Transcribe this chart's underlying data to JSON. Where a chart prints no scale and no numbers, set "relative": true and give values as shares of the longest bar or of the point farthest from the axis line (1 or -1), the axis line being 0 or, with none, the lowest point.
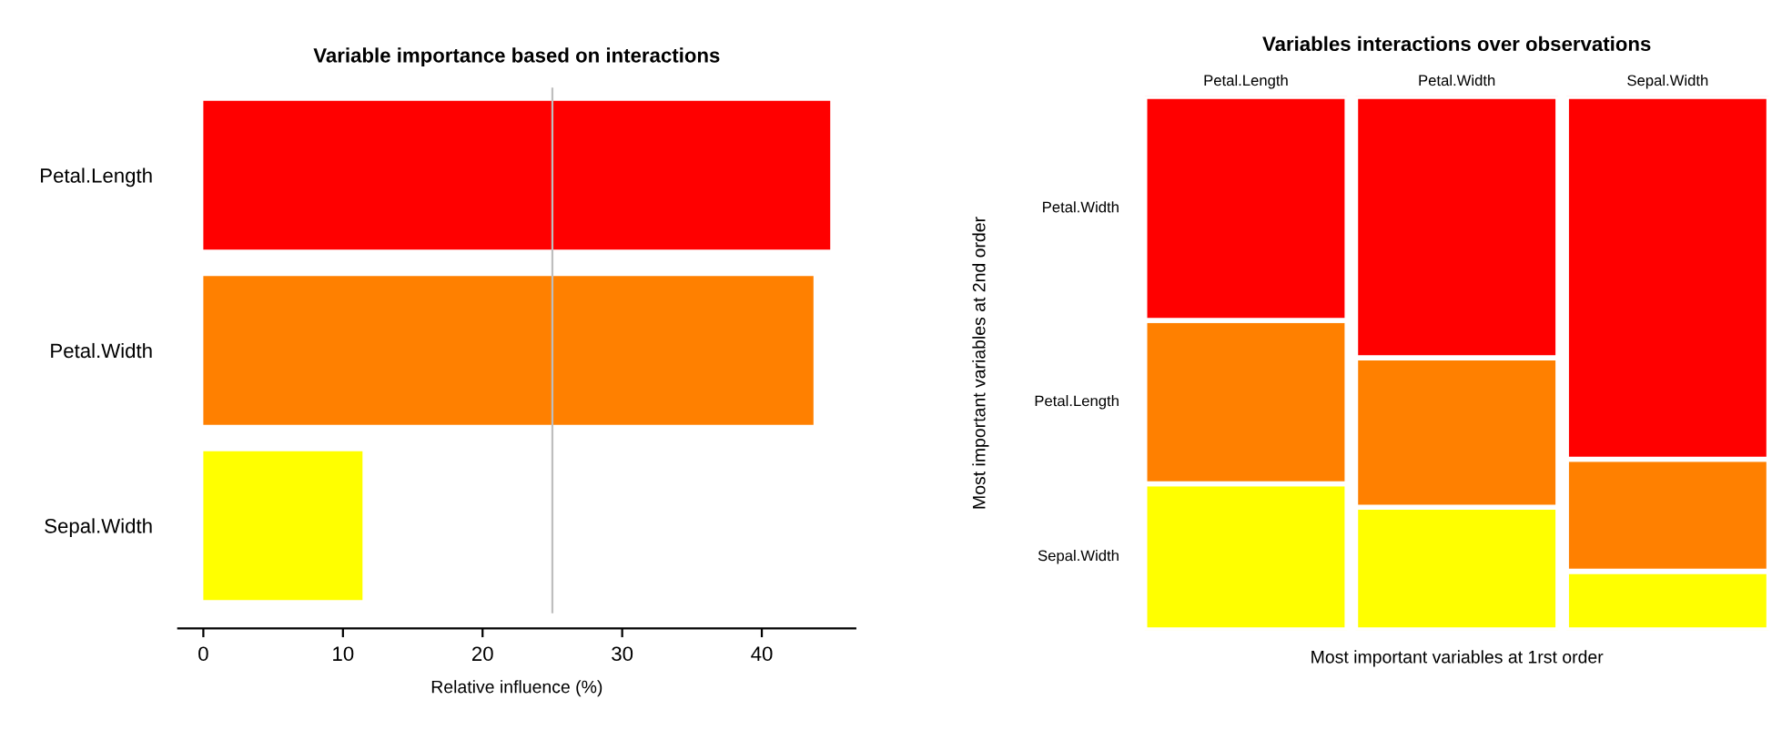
{
  "chart_data": [
    {
      "type": "bar",
      "orientation": "horizontal",
      "title": "Variable importance based on interactions",
      "xlabel": "Relative influence (%)",
      "categories": [
        "Petal.Length",
        "Petal.Width",
        "Sepal.Width"
      ],
      "values": [
        44.9,
        43.7,
        11.4
      ],
      "colors": [
        "#ff0000",
        "#ff8000",
        "#ffff00"
      ],
      "xlim": [
        -1.8,
        46.7
      ],
      "xticks": [
        0,
        10,
        20,
        30,
        40
      ],
      "ref_lines": [
        {
          "axis": "x",
          "value": 25,
          "color": "#bebebe"
        }
      ]
    },
    {
      "type": "bar",
      "stacked": true,
      "relative": true,
      "title": "Variables interactions over observations",
      "xlabel": "Most important variables at 1rst order",
      "ylabel": "Most important variables at 2nd order",
      "categories": [
        "Petal.Length",
        "Petal.Width",
        "Sepal.Width"
      ],
      "series": [
        {
          "name": "Sepal.Width",
          "color": "#ffff00",
          "values": [
            0.274,
            0.23,
            0.11
          ]
        },
        {
          "name": "Petal.Length",
          "color": "#ff8000",
          "values": [
            0.306,
            0.28,
            0.21
          ]
        },
        {
          "name": "Petal.Width",
          "color": "#ff0000",
          "values": [
            0.42,
            0.49,
            0.68
          ]
        }
      ]
    }
  ]
}
